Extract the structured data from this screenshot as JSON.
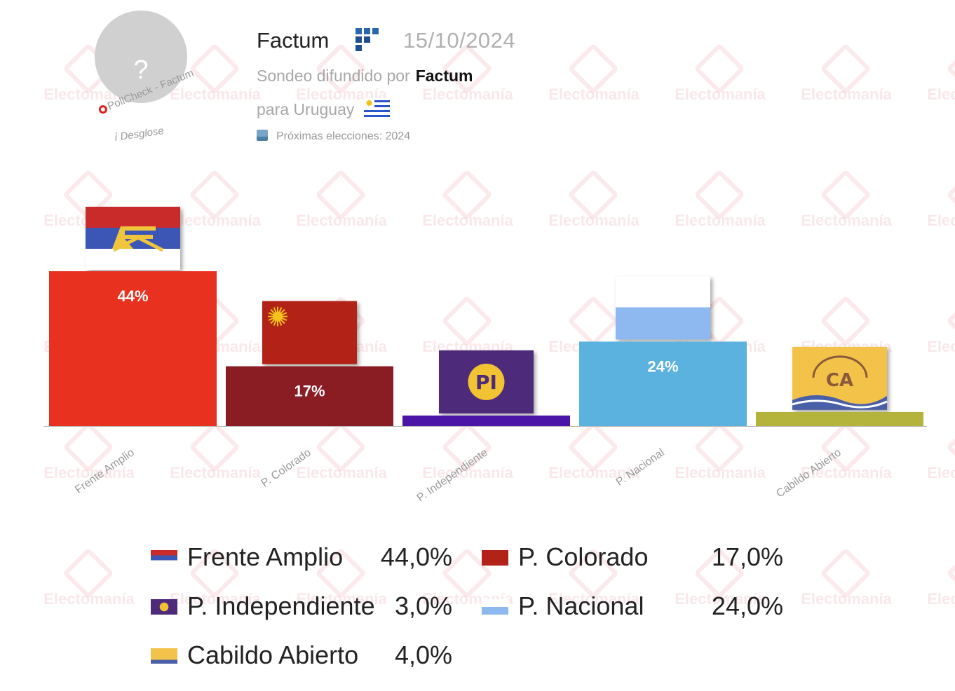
{
  "watermark_text": "Electomanía",
  "header": {
    "avatar_placeholder": "?",
    "pollcheck_label": "PollCheck - Factum",
    "desglose_label": "Desglose",
    "pollster": "Factum",
    "date": "15/10/2024",
    "sondeo_prefix": "Sondeo difundido por",
    "sondeo_pollster": "Factum",
    "country_prefix": "para Uruguay",
    "next_election": "Próximas elecciones: 2024"
  },
  "colors": {
    "frente_amplio": "#E8311F",
    "colorado": "#8A1C24",
    "independiente": "#4B16A8",
    "nacional": "#5BB2DF",
    "cabildo": "#B4B43C"
  },
  "chart_data": {
    "type": "bar",
    "title": "",
    "categories": [
      "Frente Amplio",
      "P. Colorado",
      "P. Independiente",
      "P. Nacional",
      "Cabildo Abierto"
    ],
    "values": [
      44,
      17,
      3,
      24,
      4
    ],
    "bar_labels": [
      "44%",
      "17%",
      "",
      "24%",
      ""
    ],
    "ylim": [
      0,
      50
    ],
    "grid": false,
    "legend": "bottom",
    "logos": [
      "frente-amplio-flag",
      "sun-flag",
      "pi-logo",
      "blue-white-flag",
      "ca-logo"
    ]
  },
  "legend": {
    "items": [
      {
        "name": "Frente Amplio",
        "value": "44,0%"
      },
      {
        "name": "P. Colorado",
        "value": "17,0%"
      },
      {
        "name": "P. Independiente",
        "value": "3,0%"
      },
      {
        "name": "P. Nacional",
        "value": "24,0%"
      },
      {
        "name": "Cabildo Abierto",
        "value": "4,0%"
      }
    ]
  }
}
